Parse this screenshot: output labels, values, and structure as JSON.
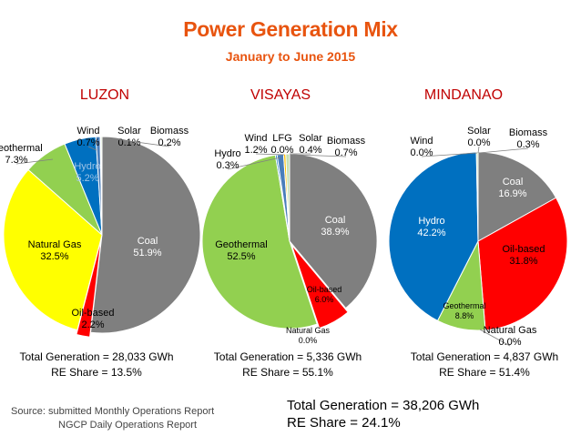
{
  "title": "Power Generation Mix",
  "subtitle": "January to June 2015",
  "chart_data": [
    {
      "type": "pie",
      "title": "LUZON",
      "slices": [
        {
          "name": "Coal",
          "value": 51.9,
          "label": "Coal\n51.9%",
          "color": "#7f7f7f"
        },
        {
          "name": "Oil-based",
          "value": 2.2,
          "label": "Oil-based\n2.2%",
          "color": "#ff0000"
        },
        {
          "name": "Natural Gas",
          "value": 32.5,
          "label": "Natural Gas\n32.5%",
          "color": "#ffff00"
        },
        {
          "name": "Geothermal",
          "value": 7.3,
          "label": "Geothermal\n7.3%",
          "color": "#92d050"
        },
        {
          "name": "Hydro",
          "value": 5.2,
          "label": "Hydro\n5.2%",
          "color": "#0070c0"
        },
        {
          "name": "Wind",
          "value": 0.7,
          "label": "Wind\n0.7%",
          "color": "#4a7ebb"
        },
        {
          "name": "Solar",
          "value": 0.1,
          "label": "Solar\n0.1%",
          "color": "#ffc000"
        },
        {
          "name": "Biomass",
          "value": 0.2,
          "label": "Biomass\n0.2%",
          "color": "#c5e0b4"
        }
      ],
      "total": "Total Generation = 28,033 GWh",
      "re_share": "RE Share = 13.5%"
    },
    {
      "type": "pie",
      "title": "VISAYAS",
      "slices": [
        {
          "name": "Coal",
          "value": 38.9,
          "label": "Coal\n38.9%",
          "color": "#7f7f7f"
        },
        {
          "name": "Oil-based",
          "value": 6.0,
          "label": "Oil-based\n6.0%",
          "color": "#ff0000"
        },
        {
          "name": "Natural Gas",
          "value": 0.0,
          "label": "Natural Gas\n0.0%",
          "color": "#ffff00"
        },
        {
          "name": "Geothermal",
          "value": 52.5,
          "label": "Geothermal\n52.5%",
          "color": "#92d050"
        },
        {
          "name": "Hydro",
          "value": 0.3,
          "label": "Hydro\n0.3%",
          "color": "#0070c0"
        },
        {
          "name": "Wind",
          "value": 1.2,
          "label": "Wind\n1.2%",
          "color": "#4a7ebb"
        },
        {
          "name": "LFG",
          "value": 0.0,
          "label": "LFG\n0.0%",
          "color": "#a5a5a5"
        },
        {
          "name": "Solar",
          "value": 0.4,
          "label": "Solar\n0.4%",
          "color": "#ffc000"
        },
        {
          "name": "Biomass",
          "value": 0.7,
          "label": "Biomass\n0.7%",
          "color": "#c5e0b4"
        }
      ],
      "total": "Total Generation = 5,336 GWh",
      "re_share": "RE Share = 55.1%"
    },
    {
      "type": "pie",
      "title": "MINDANAO",
      "slices": [
        {
          "name": "Coal",
          "value": 16.9,
          "label": "Coal\n16.9%",
          "color": "#7f7f7f"
        },
        {
          "name": "Oil-based",
          "value": 31.8,
          "label": "Oil-based\n31.8%",
          "color": "#ff0000"
        },
        {
          "name": "Natural Gas",
          "value": 0.0,
          "label": "Natural Gas\n0.0%",
          "color": "#ffff00"
        },
        {
          "name": "Geothermal",
          "value": 8.8,
          "label": "Geothermal\n8.8%",
          "color": "#92d050"
        },
        {
          "name": "Hydro",
          "value": 42.2,
          "label": "Hydro\n42.2%",
          "color": "#0070c0"
        },
        {
          "name": "Wind",
          "value": 0.0,
          "label": "Wind\n0.0%",
          "color": "#4a7ebb"
        },
        {
          "name": "Solar",
          "value": 0.0,
          "label": "Solar\n0.0%",
          "color": "#ffc000"
        },
        {
          "name": "Biomass",
          "value": 0.3,
          "label": "Biomass\n0.3%",
          "color": "#c5e0b4"
        }
      ],
      "total": "Total Generation = 4,837 GWh",
      "re_share": "RE Share = 51.4%"
    }
  ],
  "grand_total": "Total Generation = 38,206 GWh",
  "grand_re_share": "RE Share = 24.1%",
  "source_line1": "Source: submitted Monthly Operations Report",
  "source_line2": "NGCP Daily Operations Report"
}
